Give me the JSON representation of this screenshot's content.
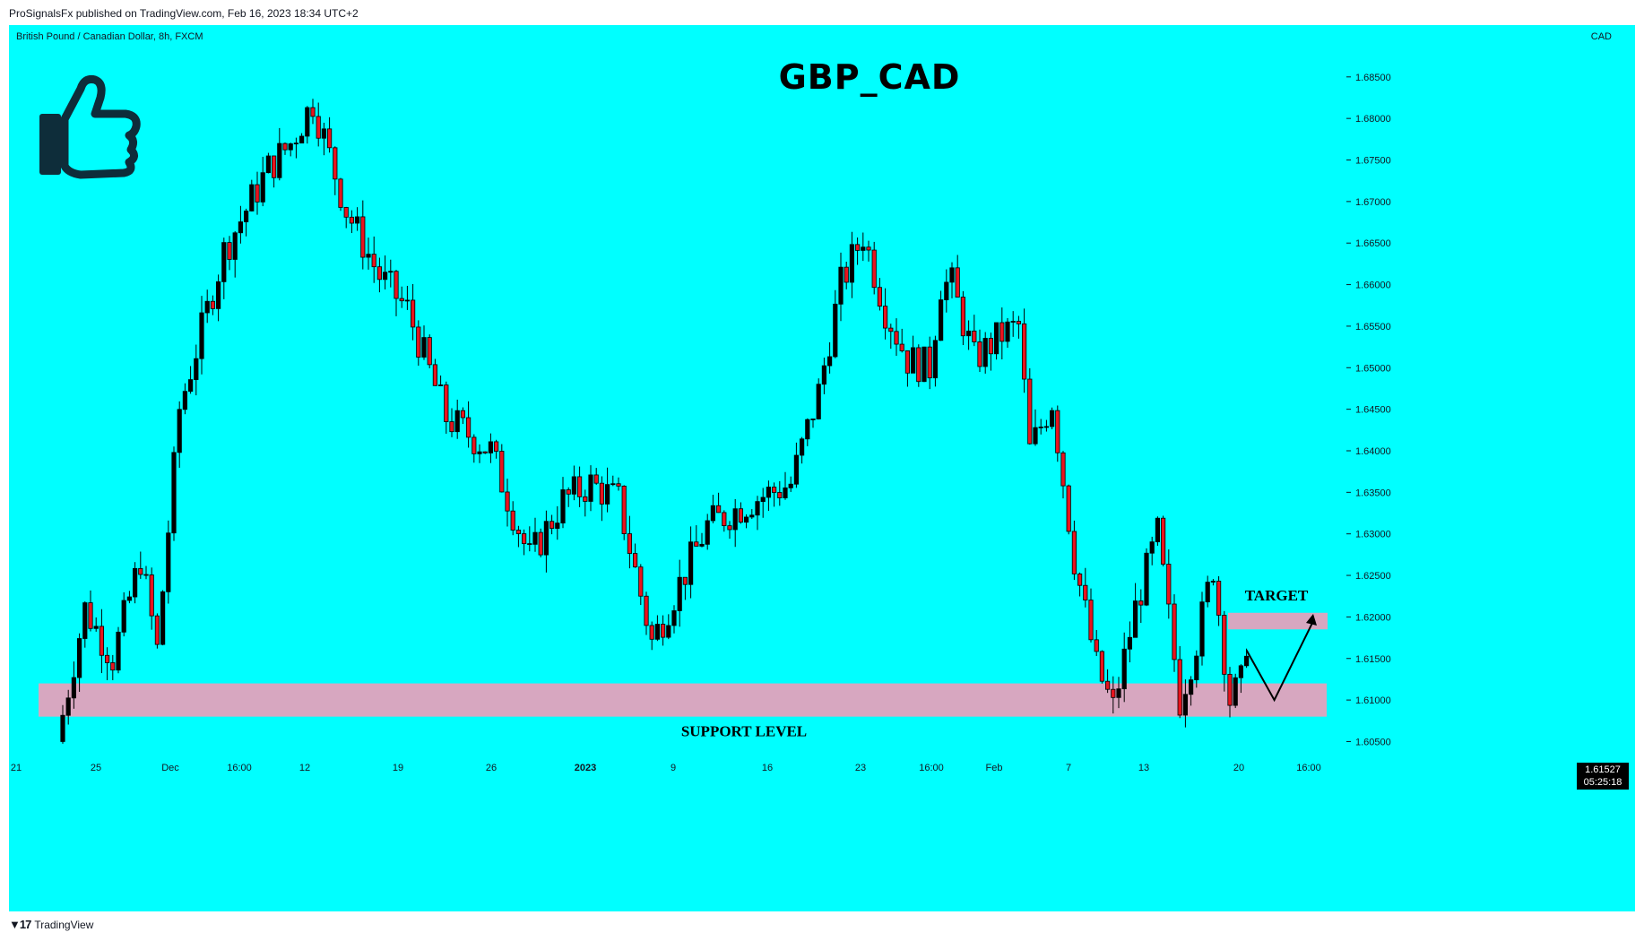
{
  "header": {
    "published_by": "ProSignalsFx published on TradingView.com, Feb 16, 2023 18:34 UTC+2"
  },
  "chart_header": {
    "symbol_line": "British Pound / Canadian Dollar, 8h, FXCM",
    "currency": "CAD",
    "title": "GBP_CAD"
  },
  "icons": {
    "thumbs_up": "thumbs-up-icon",
    "tradingview_logo": "tradingview-logo-icon"
  },
  "colors": {
    "background": "#00ffff",
    "up_candle": "#000000",
    "down_candle": "#e8141e",
    "zone": "#d7a7c0"
  },
  "price_tag": {
    "price": "1.61527",
    "countdown": "05:25:18"
  },
  "annotations": {
    "support": "SUPPORT LEVEL",
    "target": "TARGET"
  },
  "footer": {
    "brand": "TradingView"
  },
  "chart_data": {
    "type": "candlestick",
    "title": "GBP_CAD",
    "timeframe": "8h",
    "ylim": [
      1.603,
      1.688
    ],
    "y_ticks": [
      "1.68500",
      "1.68000",
      "1.67500",
      "1.67000",
      "1.66500",
      "1.66000",
      "1.65500",
      "1.65000",
      "1.64500",
      "1.64000",
      "1.63500",
      "1.63000",
      "1.62500",
      "1.62000",
      "1.61500",
      "1.61000",
      "1.60500"
    ],
    "x_ticks": [
      "21",
      "25",
      "Dec",
      "16:00",
      "12",
      "19",
      "26",
      "2023",
      "9",
      "16",
      "23",
      "16:00",
      "Feb",
      "7",
      "13",
      "20",
      "16:00"
    ],
    "bold_x_ticks": [
      "2023"
    ],
    "grid": false,
    "waypoints": [
      [
        0,
        1.605
      ],
      [
        5,
        1.621
      ],
      [
        10,
        1.615
      ],
      [
        15,
        1.627
      ],
      [
        18,
        1.616
      ],
      [
        22,
        1.645
      ],
      [
        30,
        1.664
      ],
      [
        38,
        1.674
      ],
      [
        42,
        1.677
      ],
      [
        46,
        1.682
      ],
      [
        52,
        1.669
      ],
      [
        58,
        1.661
      ],
      [
        63,
        1.657
      ],
      [
        70,
        1.644
      ],
      [
        78,
        1.64
      ],
      [
        85,
        1.627
      ],
      [
        91,
        1.634
      ],
      [
        96,
        1.636
      ],
      [
        101,
        1.634
      ],
      [
        107,
        1.617
      ],
      [
        112,
        1.624
      ],
      [
        117,
        1.631
      ],
      [
        125,
        1.634
      ],
      [
        132,
        1.636
      ],
      [
        137,
        1.647
      ],
      [
        141,
        1.66
      ],
      [
        145,
        1.666
      ],
      [
        149,
        1.657
      ],
      [
        153,
        1.651
      ],
      [
        157,
        1.65
      ],
      [
        159,
        1.66
      ],
      [
        161,
        1.66
      ],
      [
        165,
        1.651
      ],
      [
        170,
        1.654
      ],
      [
        173,
        1.655
      ],
      [
        175,
        1.64
      ],
      [
        179,
        1.646
      ],
      [
        183,
        1.627
      ],
      [
        187,
        1.614
      ],
      [
        190,
        1.609
      ],
      [
        194,
        1.621
      ],
      [
        198,
        1.63
      ],
      [
        202,
        1.61
      ],
      [
        205,
        1.617
      ],
      [
        208,
        1.626
      ],
      [
        211,
        1.61
      ],
      [
        213,
        1.612
      ]
    ],
    "support_zone": {
      "low": 1.608,
      "high": 1.612,
      "label": "SUPPORT LEVEL"
    },
    "target_zone": {
      "low": 1.6185,
      "high": 1.6205,
      "label": "TARGET"
    },
    "projection": [
      [
        213,
        1.616
      ],
      [
        218,
        1.61
      ],
      [
        225,
        1.6195
      ]
    ],
    "last_price": 1.61527
  }
}
